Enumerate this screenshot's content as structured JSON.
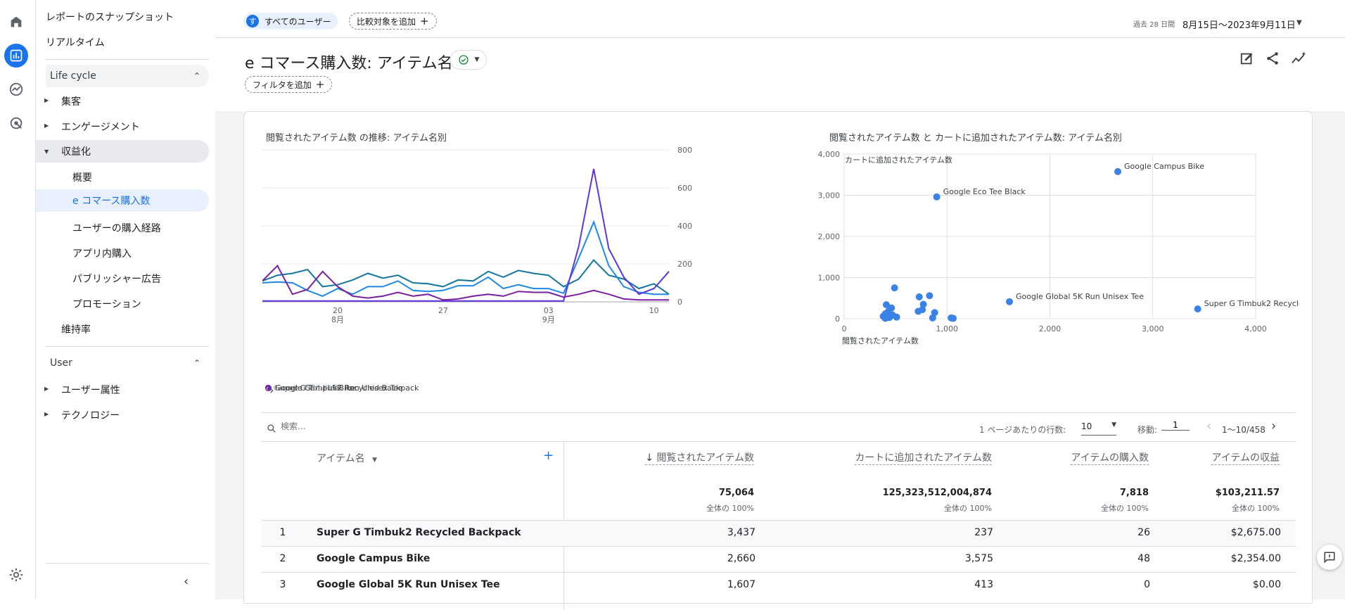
{
  "rail": {
    "icons": [
      "home-icon",
      "reports-icon",
      "explore-icon",
      "advertising-icon"
    ],
    "settings": "gear-icon"
  },
  "nav": {
    "snapshot": "レポートのスナップショット",
    "realtime": "リアルタイム",
    "lifecycle": "Life cycle",
    "acquisition": "集客",
    "engagement": "エンゲージメント",
    "monetization": "収益化",
    "overview": "概要",
    "ecommerce": "e コマース購入数",
    "user_journey": "ユーザーの購入経路",
    "inapp": "アプリ内購入",
    "publisher_ads": "パブリッシャー広告",
    "promotion": "プロモーション",
    "retention": "維持率",
    "user": "User",
    "user_attr": "ユーザー属性",
    "tech": "テクノロジー"
  },
  "topbar": {
    "avatar_letter": "す",
    "all_users": "すべてのユーザー",
    "add_comparison": "比較対象を追加",
    "date_prefix": "過去 28 日間",
    "date_range": "8月15日～2023年9月11日"
  },
  "header": {
    "title": "e コマース購入数: アイテム名",
    "add_filter": "フィルタを追加"
  },
  "line_chart": {
    "title": "閲覧されたアイテム数 の推移: アイテム名別",
    "x_ticks": [
      {
        "d": "20",
        "m": "8月"
      },
      {
        "d": "27",
        "m": ""
      },
      {
        "d": "03",
        "m": "9月"
      },
      {
        "d": "10",
        "m": ""
      }
    ],
    "y_ticks": [
      "800",
      "600",
      "400",
      "200",
      "0"
    ],
    "legend": [
      "Super G Timbuk2 Recycled Backpack",
      "Google Campus Bike",
      "Google Global 5K Run Unisex Tee",
      "Google Pride Holo"
    ]
  },
  "scatter_chart": {
    "title": "閲覧されたアイテム数 と カートに追加されたアイテム数: アイテム名別",
    "ylabel": "カートに追加されたアイテム数",
    "xlabel": "閲覧されたアイテム数",
    "y_ticks": [
      "4,000",
      "3,000",
      "2,000",
      "1,000",
      "0"
    ],
    "x_ticks": [
      "0",
      "1,000",
      "2,000",
      "3,000",
      "4,000"
    ],
    "labels": [
      "Google Campus Bike",
      "Google Eco Tee Black",
      "Google Global 5K Run Unisex Tee",
      "Super G Timbuk2 Recycled Backpa"
    ]
  },
  "chart_data": [
    {
      "type": "line",
      "title": "閲覧されたアイテム数 の推移: アイテム名別",
      "xlabel": "",
      "ylabel": "",
      "x": [
        "8/15",
        "8/16",
        "8/17",
        "8/18",
        "8/19",
        "8/20",
        "8/21",
        "8/22",
        "8/23",
        "8/24",
        "8/25",
        "8/26",
        "8/27",
        "8/28",
        "8/29",
        "8/30",
        "8/31",
        "9/1",
        "9/2",
        "9/3",
        "9/4",
        "9/5",
        "9/6",
        "9/7",
        "9/8",
        "9/9",
        "9/10",
        "9/11"
      ],
      "ylim": [
        0,
        800
      ],
      "series": [
        {
          "name": "Super G Timbuk2 Recycled Backpack",
          "color": "#12769e",
          "values": [
            110,
            140,
            150,
            170,
            80,
            90,
            115,
            150,
            125,
            140,
            100,
            95,
            80,
            115,
            110,
            160,
            130,
            165,
            150,
            140,
            80,
            120,
            220,
            140,
            120,
            70,
            95,
            40
          ]
        },
        {
          "name": "Google Campus Bike",
          "color": "#1e88e5",
          "values": [
            100,
            105,
            100,
            60,
            30,
            70,
            40,
            80,
            80,
            110,
            60,
            55,
            60,
            85,
            85,
            130,
            70,
            90,
            70,
            70,
            45,
            230,
            420,
            190,
            80,
            50,
            40,
            40
          ]
        },
        {
          "name": "Google Global 5K Run Unisex Tee",
          "color": "#5e35e0",
          "values": [
            5,
            5,
            5,
            5,
            5,
            5,
            5,
            5,
            5,
            5,
            5,
            5,
            5,
            5,
            5,
            5,
            5,
            5,
            5,
            5,
            5,
            290,
            700,
            280,
            130,
            40,
            70,
            160
          ]
        },
        {
          "name": "Google Pride Holo",
          "color": "#7b1fa2",
          "values": [
            110,
            190,
            40,
            65,
            160,
            80,
            30,
            20,
            30,
            50,
            30,
            40,
            10,
            15,
            30,
            40,
            30,
            55,
            50,
            50,
            25,
            40,
            60,
            40,
            15,
            10,
            10,
            10
          ]
        }
      ]
    },
    {
      "type": "scatter",
      "title": "閲覧されたアイテム数 と カートに追加されたアイテム数: アイテム名別",
      "xlabel": "閲覧されたアイテム数",
      "ylabel": "カートに追加されたアイテム数",
      "xlim": [
        0,
        4000
      ],
      "ylim": [
        0,
        4000
      ],
      "points": [
        {
          "label": "Google Campus Bike",
          "x": 2660,
          "y": 3575
        },
        {
          "label": "Google Eco Tee Black",
          "x": 900,
          "y": 2960
        },
        {
          "label": "Google Global 5K Run Unisex Tee",
          "x": 1607,
          "y": 413
        },
        {
          "label": "Super G Timbuk2 Recycled Backpa",
          "x": 3437,
          "y": 237
        },
        {
          "label": "",
          "x": 490,
          "y": 750
        },
        {
          "label": "",
          "x": 410,
          "y": 340
        },
        {
          "label": "",
          "x": 460,
          "y": 260
        },
        {
          "label": "",
          "x": 430,
          "y": 180
        },
        {
          "label": "",
          "x": 400,
          "y": 120
        },
        {
          "label": "",
          "x": 380,
          "y": 60
        },
        {
          "label": "",
          "x": 470,
          "y": 90
        },
        {
          "label": "",
          "x": 510,
          "y": 40
        },
        {
          "label": "",
          "x": 440,
          "y": 30
        },
        {
          "label": "",
          "x": 400,
          "y": 10
        },
        {
          "label": "",
          "x": 730,
          "y": 530
        },
        {
          "label": "",
          "x": 830,
          "y": 560
        },
        {
          "label": "",
          "x": 770,
          "y": 350
        },
        {
          "label": "",
          "x": 760,
          "y": 220
        },
        {
          "label": "",
          "x": 720,
          "y": 180
        },
        {
          "label": "",
          "x": 880,
          "y": 150
        },
        {
          "label": "",
          "x": 860,
          "y": 20
        },
        {
          "label": "",
          "x": 1040,
          "y": 20
        },
        {
          "label": "",
          "x": 1060,
          "y": 10
        }
      ]
    }
  ],
  "toolbar": {
    "search_placeholder": "検索...",
    "rows_label": "1 ページあたりの行数:",
    "rows_value": "10",
    "goto_label": "移動:",
    "goto_value": "1",
    "range": "1～10/458"
  },
  "table": {
    "dim_header": "アイテム名",
    "columns": [
      "閲覧されたアイテム数",
      "カートに追加されたアイテム数",
      "アイテムの購入数",
      "アイテムの収益"
    ],
    "totals": [
      "75,064",
      "125,323,512,004,874",
      "7,818",
      "$103,211.57"
    ],
    "total_pct": "全体の 100%",
    "rows": [
      {
        "idx": "1",
        "name": "Super G Timbuk2 Recycled Backpack",
        "v1": "3,437",
        "v2": "237",
        "v3": "26",
        "v4": "$2,675.00"
      },
      {
        "idx": "2",
        "name": "Google Campus Bike",
        "v1": "2,660",
        "v2": "3,575",
        "v3": "48",
        "v4": "$2,354.00"
      },
      {
        "idx": "3",
        "name": "Google Global 5K Run Unisex Tee",
        "v1": "1,607",
        "v2": "413",
        "v3": "0",
        "v4": "$0.00"
      }
    ]
  }
}
